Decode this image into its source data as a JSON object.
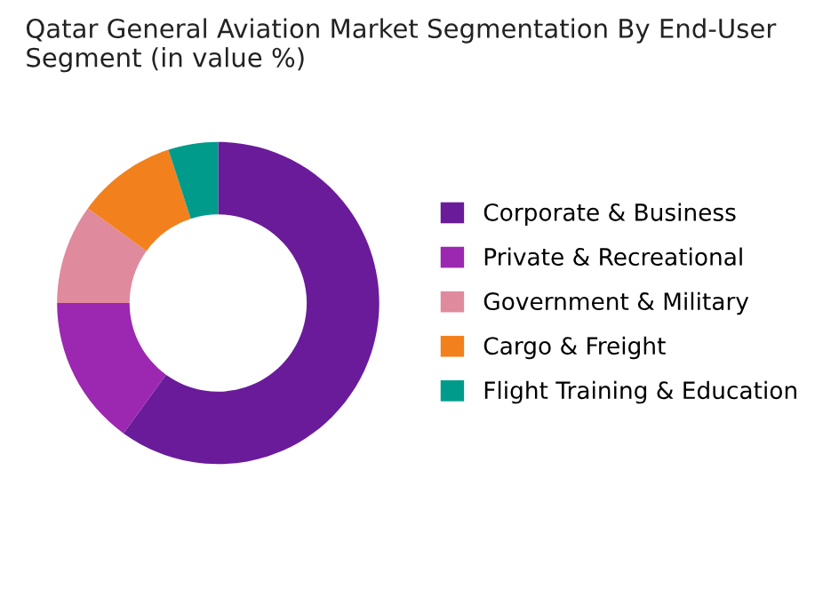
{
  "chart_data": {
    "type": "donut",
    "title": "Qatar General Aviation Market Segmentation By End-User Segment (in value %)",
    "categories": [
      "Corporate & Business",
      "Private & Recreational",
      "Government & Military",
      "Cargo & Freight",
      "Flight Training & Education"
    ],
    "values": [
      60,
      15,
      10,
      10,
      5
    ],
    "colors": [
      "#6a1b9a",
      "#9c27b0",
      "#e08a9e",
      "#f2811d",
      "#009b8a"
    ],
    "legend": "right"
  }
}
